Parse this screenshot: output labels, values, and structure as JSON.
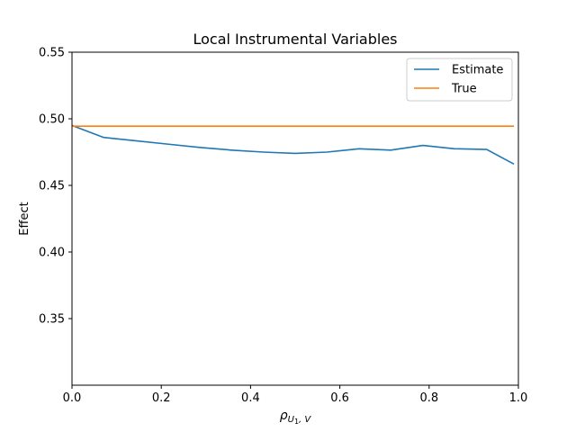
{
  "chart_data": {
    "type": "line",
    "title": "Local Instrumental Variables",
    "xlabel": "ρ_{U_1, V}",
    "ylabel": "Effect",
    "xlim": [
      0.0,
      1.0
    ],
    "ylim": [
      0.3,
      0.55
    ],
    "xticks": [
      "0.0",
      "0.2",
      "0.4",
      "0.6",
      "0.8",
      "1.0"
    ],
    "xtick_values": [
      0.0,
      0.2,
      0.4,
      0.6,
      0.8,
      1.0
    ],
    "yticks": [
      "0.35",
      "0.40",
      "0.45",
      "0.50",
      "0.55"
    ],
    "ytick_values": [
      0.35,
      0.4,
      0.45,
      0.5,
      0.55
    ],
    "grid": false,
    "legend_position": "top-right",
    "series": [
      {
        "name": "Estimate",
        "color": "#1f77b4",
        "x": [
          0.0,
          0.071,
          0.143,
          0.214,
          0.286,
          0.357,
          0.429,
          0.5,
          0.571,
          0.643,
          0.714,
          0.786,
          0.857,
          0.929,
          0.99
        ],
        "y": [
          0.495,
          0.486,
          0.4835,
          0.481,
          0.4785,
          0.4765,
          0.475,
          0.474,
          0.475,
          0.4775,
          0.4765,
          0.48,
          0.4775,
          0.477,
          0.466
        ]
      },
      {
        "name": "True",
        "color": "#ff7f0e",
        "x": [
          0.0,
          0.99
        ],
        "y": [
          0.4945,
          0.4945
        ]
      }
    ]
  }
}
